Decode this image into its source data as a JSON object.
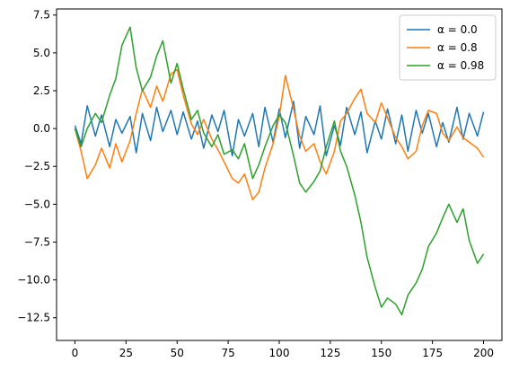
{
  "chart_data": {
    "type": "line",
    "title": "",
    "xlabel": "",
    "ylabel": "",
    "xlim": [
      -9,
      209
    ],
    "ylim": [
      -14.0,
      7.9
    ],
    "xticks": [
      0,
      25,
      50,
      75,
      100,
      125,
      150,
      175,
      200
    ],
    "yticks": [
      7.5,
      5.0,
      2.5,
      0.0,
      -2.5,
      -5.0,
      -7.5,
      -10.0,
      -12.5
    ],
    "xtick_labels": [
      "0",
      "25",
      "50",
      "75",
      "100",
      "125",
      "150",
      "175",
      "200"
    ],
    "ytick_labels": [
      "7.5",
      "5.0",
      "2.5",
      "0.0",
      "−2.5",
      "−5.0",
      "−7.5",
      "−10.0",
      "−12.5"
    ],
    "grid": false,
    "legend_position": "top-right",
    "series": [
      {
        "name": "α = 0.0",
        "color": "#1f77b4",
        "x": [
          0,
          3,
          6,
          10,
          13,
          17,
          20,
          23,
          27,
          30,
          33,
          37,
          40,
          43,
          47,
          50,
          53,
          57,
          60,
          63,
          67,
          70,
          73,
          77,
          80,
          83,
          87,
          90,
          93,
          97,
          100,
          103,
          107,
          110,
          113,
          117,
          120,
          123,
          127,
          130,
          133,
          137,
          140,
          143,
          147,
          150,
          153,
          157,
          160,
          163,
          167,
          170,
          173,
          177,
          180,
          183,
          187,
          190,
          193,
          197,
          200
        ],
        "values": [
          0.2,
          -1.0,
          1.5,
          -0.5,
          0.9,
          -1.2,
          0.6,
          -0.3,
          0.8,
          -1.6,
          1.0,
          -0.8,
          1.4,
          -0.2,
          1.2,
          -0.4,
          1.1,
          -0.7,
          0.5,
          -1.3,
          0.9,
          -0.2,
          1.2,
          -1.8,
          0.6,
          -0.5,
          1.0,
          -1.2,
          1.4,
          -0.9,
          1.3,
          -0.6,
          1.8,
          -1.3,
          0.8,
          -0.4,
          1.5,
          -1.8,
          0.2,
          -1.1,
          1.4,
          -0.4,
          1.1,
          -1.6,
          0.5,
          -0.7,
          1.3,
          -1.0,
          0.9,
          -1.5,
          1.2,
          -0.3,
          1.0,
          -1.2,
          0.4,
          -0.9,
          1.4,
          -0.7,
          1.0,
          -0.5,
          1.1
        ]
      },
      {
        "name": "α = 0.8",
        "color": "#ff7f0e",
        "x": [
          0,
          3,
          6,
          10,
          13,
          17,
          20,
          23,
          27,
          30,
          33,
          37,
          40,
          43,
          47,
          50,
          53,
          57,
          60,
          63,
          67,
          70,
          73,
          77,
          80,
          83,
          87,
          90,
          93,
          97,
          100,
          103,
          107,
          110,
          113,
          117,
          120,
          123,
          127,
          130,
          133,
          137,
          140,
          143,
          147,
          150,
          153,
          157,
          160,
          163,
          167,
          170,
          173,
          177,
          180,
          183,
          187,
          190,
          193,
          197,
          200
        ],
        "values": [
          0.0,
          -1.5,
          -3.3,
          -2.4,
          -1.3,
          -2.6,
          -1.0,
          -2.2,
          -0.8,
          1.0,
          2.6,
          1.4,
          2.8,
          1.8,
          3.6,
          3.9,
          2.2,
          0.3,
          -0.4,
          0.6,
          -0.7,
          -1.4,
          -2.2,
          -3.3,
          -3.6,
          -3.0,
          -4.7,
          -4.2,
          -2.6,
          -1.0,
          0.8,
          3.5,
          1.3,
          -0.5,
          -1.5,
          -1.0,
          -2.2,
          -3.0,
          -1.5,
          0.5,
          1.0,
          2.0,
          2.6,
          1.0,
          0.4,
          1.7,
          0.7,
          -0.6,
          -1.2,
          -2.0,
          -1.5,
          0.2,
          1.2,
          1.0,
          -0.3,
          -0.8,
          0.1,
          -0.6,
          -0.9,
          -1.3,
          -1.9
        ]
      },
      {
        "name": "α = 0.98",
        "color": "#2ca02c",
        "x": [
          0,
          3,
          6,
          10,
          13,
          17,
          20,
          23,
          27,
          30,
          33,
          37,
          40,
          43,
          47,
          50,
          53,
          57,
          60,
          63,
          67,
          70,
          73,
          77,
          80,
          83,
          87,
          90,
          93,
          97,
          100,
          103,
          107,
          110,
          113,
          117,
          120,
          123,
          127,
          130,
          133,
          137,
          140,
          143,
          147,
          150,
          153,
          157,
          160,
          163,
          167,
          170,
          173,
          177,
          180,
          183,
          187,
          190,
          193,
          197,
          200
        ],
        "values": [
          0.0,
          -1.2,
          0.0,
          1.0,
          0.4,
          2.2,
          3.3,
          5.5,
          6.7,
          4.0,
          2.5,
          3.4,
          4.8,
          5.8,
          3.0,
          4.3,
          2.6,
          0.6,
          1.2,
          -0.3,
          -1.2,
          -0.4,
          -1.7,
          -1.4,
          -2.0,
          -1.0,
          -3.3,
          -2.4,
          -1.2,
          0.2,
          0.9,
          0.4,
          -1.8,
          -3.6,
          -4.2,
          -3.5,
          -2.8,
          -1.2,
          0.5,
          -1.5,
          -2.5,
          -4.4,
          -6.2,
          -8.5,
          -10.5,
          -11.8,
          -11.2,
          -11.6,
          -12.3,
          -11.0,
          -10.2,
          -9.3,
          -7.8,
          -6.9,
          -5.9,
          -5.0,
          -6.2,
          -5.3,
          -7.4,
          -8.9,
          -8.3
        ]
      }
    ]
  }
}
